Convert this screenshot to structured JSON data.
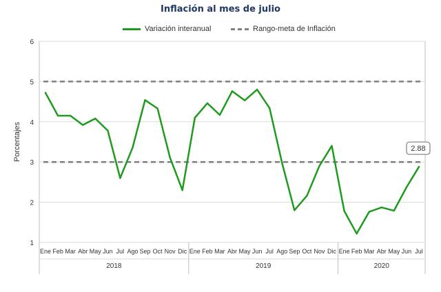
{
  "chart_data": {
    "type": "line",
    "title": "Inflación al mes de julio",
    "ylabel": "Porcentajes",
    "ylim": [
      1,
      6
    ],
    "yticks": [
      1,
      2,
      3,
      4,
      5,
      6
    ],
    "grid": "horizontal",
    "legend_position": "top",
    "categories": [
      "Ene",
      "Feb",
      "Mar",
      "Abr",
      "May",
      "Jun",
      "Jul",
      "Ago",
      "Sep",
      "Oct",
      "Nov",
      "Dic",
      "Ene",
      "Feb",
      "Mar",
      "Abr",
      "May",
      "Jun",
      "Jul",
      "Ago",
      "Sep",
      "Oct",
      "Nov",
      "Dic",
      "Ene",
      "Feb",
      "Mar",
      "Abr",
      "May",
      "Jun",
      "Jul"
    ],
    "year_groups": [
      {
        "label": "2018",
        "count": 12
      },
      {
        "label": "2019",
        "count": 12
      },
      {
        "label": "2020",
        "count": 7
      }
    ],
    "series": [
      {
        "name": "Variación interanual",
        "color": "#1e9a1e",
        "style": "solid",
        "values": [
          4.72,
          4.15,
          4.15,
          3.92,
          4.08,
          3.78,
          2.6,
          3.36,
          4.54,
          4.33,
          3.11,
          2.3,
          4.1,
          4.46,
          4.17,
          4.76,
          4.53,
          4.8,
          4.34,
          2.98,
          1.8,
          2.16,
          2.9,
          3.4,
          1.78,
          1.22,
          1.76,
          1.87,
          1.79,
          2.37,
          2.88
        ]
      },
      {
        "name": "Rango-meta de Inflación",
        "color": "#808080",
        "style": "dashed",
        "values_upper": 5,
        "values_lower": 3
      }
    ],
    "annotations": [
      {
        "text": "2.88",
        "at_index": 30
      }
    ]
  }
}
